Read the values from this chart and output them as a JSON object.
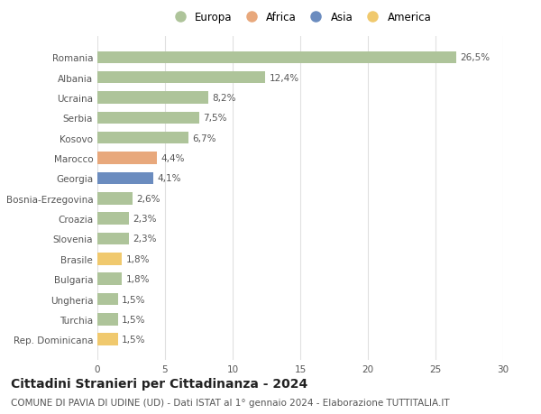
{
  "countries": [
    "Romania",
    "Albania",
    "Ucraina",
    "Serbia",
    "Kosovo",
    "Marocco",
    "Georgia",
    "Bosnia-Erzegovina",
    "Croazia",
    "Slovenia",
    "Brasile",
    "Bulgaria",
    "Ungheria",
    "Turchia",
    "Rep. Dominicana"
  ],
  "values": [
    26.5,
    12.4,
    8.2,
    7.5,
    6.7,
    4.4,
    4.1,
    2.6,
    2.3,
    2.3,
    1.8,
    1.8,
    1.5,
    1.5,
    1.5
  ],
  "labels": [
    "26,5%",
    "12,4%",
    "8,2%",
    "7,5%",
    "6,7%",
    "4,4%",
    "4,1%",
    "2,6%",
    "2,3%",
    "2,3%",
    "1,8%",
    "1,8%",
    "1,5%",
    "1,5%",
    "1,5%"
  ],
  "continents": [
    "Europa",
    "Europa",
    "Europa",
    "Europa",
    "Europa",
    "Africa",
    "Asia",
    "Europa",
    "Europa",
    "Europa",
    "America",
    "Europa",
    "Europa",
    "Europa",
    "America"
  ],
  "colors": {
    "Europa": "#aec49a",
    "Africa": "#e8a87c",
    "Asia": "#6b8cbf",
    "America": "#f0c96e"
  },
  "legend_labels": [
    "Europa",
    "Africa",
    "Asia",
    "America"
  ],
  "legend_colors": [
    "#aec49a",
    "#e8a87c",
    "#6b8cbf",
    "#f0c96e"
  ],
  "title": "Cittadini Stranieri per Cittadinanza - 2024",
  "subtitle": "COMUNE DI PAVIA DI UDINE (UD) - Dati ISTAT al 1° gennaio 2024 - Elaborazione TUTTITALIA.IT",
  "xlim": [
    0,
    30
  ],
  "xticks": [
    0,
    5,
    10,
    15,
    20,
    25,
    30
  ],
  "background_color": "#ffffff",
  "grid_color": "#e0e0e0",
  "bar_height": 0.6,
  "label_fontsize": 7.5,
  "tick_fontsize": 7.5,
  "title_fontsize": 10,
  "subtitle_fontsize": 7.5
}
